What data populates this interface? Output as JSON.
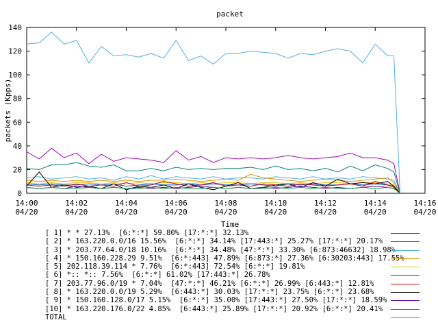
{
  "chart_data": {
    "type": "line",
    "title": "packet",
    "xlabel": "Time",
    "ylabel": "packets (Kpps)",
    "ylim": [
      0,
      140
    ],
    "yticks": [
      0,
      20,
      40,
      60,
      80,
      100,
      120,
      140
    ],
    "xlim": [
      0,
      16
    ],
    "xticks": [
      {
        "value": 0,
        "time": "14:00",
        "date": "04/20"
      },
      {
        "value": 2,
        "time": "14:02",
        "date": "04/20"
      },
      {
        "value": 4,
        "time": "14:04",
        "date": "04/20"
      },
      {
        "value": 6,
        "time": "14:06",
        "date": "04/20"
      },
      {
        "value": 8,
        "time": "14:08",
        "date": "04/20"
      },
      {
        "value": 10,
        "time": "14:10",
        "date": "04/20"
      },
      {
        "value": 12,
        "time": "14:12",
        "date": "04/20"
      },
      {
        "value": 14,
        "time": "14:14",
        "date": "04/20"
      },
      {
        "value": 16,
        "time": "14:16",
        "date": "04/20"
      }
    ],
    "x": [
      0,
      0.5,
      1,
      1.5,
      2,
      2.5,
      3,
      3.5,
      4,
      4.5,
      5,
      5.5,
      6,
      6.5,
      7,
      7.5,
      8,
      8.5,
      9,
      9.5,
      10,
      10.5,
      11,
      11.5,
      12,
      12.5,
      13,
      13.5,
      14,
      14.5,
      14.75,
      15
    ],
    "series": [
      {
        "name": "[ 1] * * 27.13%  [6:*:*] 59.80% [17:*:*] 32.13%",
        "color": "#a000c0",
        "values": [
          35,
          29,
          38,
          30,
          34,
          25,
          33,
          27,
          30,
          29,
          28,
          26,
          36,
          28,
          31,
          26,
          30,
          29,
          30,
          29,
          30,
          32,
          30,
          29,
          30,
          31,
          34,
          30,
          30,
          28,
          25,
          0
        ]
      },
      {
        "name": "[ 2] * 163.220.0.0/16 15.56%  [6:*:*] 34.14% [17:443:*] 25.27% [17:*:*] 20.17%",
        "color": "#008070",
        "values": [
          21,
          20,
          24,
          24,
          26,
          23,
          22,
          24,
          19,
          19,
          21,
          19,
          22,
          20,
          21,
          20,
          21,
          21,
          22,
          20,
          23,
          20,
          21,
          19,
          21,
          18,
          23,
          19,
          24,
          21,
          18,
          0
        ]
      },
      {
        "name": "[ 3] * 203.77.64.0/18 10.16%  [6:*:*] 34.48% [47:*:*] 33.30% [6:873:46632] 18.98%",
        "color": "#50b0e0",
        "values": [
          13,
          14,
          12,
          13,
          14,
          12,
          13,
          11,
          14,
          12,
          15,
          12,
          14,
          13,
          12,
          14,
          12,
          13,
          13,
          12,
          14,
          13,
          12,
          14,
          12,
          13,
          12,
          14,
          13,
          12,
          11,
          0
        ]
      },
      {
        "name": "[ 4] * 150.160.228.29 9.51%  [6:*:443] 47.89% [6:873:*] 27.36% [6:30203:443] 17.55%",
        "color": "#e09000",
        "values": [
          11,
          10,
          11,
          10,
          11,
          10,
          11,
          10,
          11,
          10,
          11,
          11,
          12,
          11,
          10,
          11,
          12,
          11,
          16,
          13,
          12,
          11,
          10,
          11,
          12,
          11,
          10,
          11,
          12,
          13,
          9,
          0
        ]
      },
      {
        "name": "[ 5] 202.118.39.114 * 7.76%  [6:*:443] 72.54% [6:*:*] 19.81%",
        "color": "#f0c000",
        "values": [
          9,
          8,
          9,
          8,
          9,
          9,
          8,
          9,
          8,
          9,
          8,
          9,
          9,
          8,
          9,
          8,
          9,
          9,
          8,
          9,
          9,
          8,
          9,
          8,
          9,
          9,
          8,
          9,
          9,
          8,
          7,
          0
        ]
      },
      {
        "name": "[ 6] *:: *:: 7.56%  [6:*:*] 61.02% [17:443:*] 26.78%",
        "color": "#0050c0",
        "values": [
          8,
          7,
          8,
          7,
          7,
          8,
          7,
          8,
          6,
          7,
          8,
          7,
          7,
          8,
          7,
          8,
          7,
          7,
          8,
          7,
          6,
          8,
          7,
          8,
          7,
          7,
          8,
          7,
          8,
          7,
          6,
          0
        ]
      },
      {
        "name": "[ 7] 203.77.96.0/19 * 7.04%  [47:*:*] 46.21% [6:*:*] 26.99% [6:443:*] 12.81%",
        "color": "#d00000",
        "values": [
          7,
          6,
          7,
          6,
          8,
          6,
          7,
          6,
          9,
          6,
          7,
          10,
          8,
          6,
          7,
          9,
          6,
          7,
          6,
          8,
          7,
          6,
          8,
          7,
          6,
          7,
          8,
          6,
          10,
          7,
          5,
          0
        ]
      },
      {
        "name": "[ 8] * 163.220.0.0/19 5.29%  [6:443:*] 30.03% [17:*:*] 23.75% [6:*:*] 23.68%",
        "color": "#000000",
        "values": [
          6,
          18,
          5,
          7,
          5,
          6,
          4,
          8,
          3,
          6,
          5,
          7,
          4,
          8,
          5,
          3,
          6,
          9,
          4,
          5,
          7,
          8,
          5,
          9,
          6,
          12,
          8,
          9,
          8,
          10,
          6,
          0
        ]
      },
      {
        "name": "[ 9] * 150.160.128.0/17 5.15%  [6:*:*] 35.00% [17:443:*] 27.50% [17:*:*] 18.59%",
        "color": "#6000a0",
        "values": [
          5,
          4,
          5,
          4,
          6,
          5,
          4,
          5,
          4,
          5,
          4,
          5,
          4,
          5,
          6,
          5,
          4,
          5,
          4,
          5,
          4,
          5,
          6,
          5,
          4,
          5,
          4,
          5,
          6,
          5,
          4,
          0
        ]
      },
      {
        "name": "[10] * 163.220.176.0/22 4.85%  [6:443:*] 25.89% [17:*:*] 20.92% [6:*:*] 20.41%",
        "color": "#00a040",
        "values": [
          5,
          4,
          5,
          4,
          4,
          5,
          4,
          5,
          4,
          4,
          5,
          4,
          5,
          4,
          4,
          5,
          4,
          5,
          4,
          4,
          5,
          4,
          5,
          4,
          5,
          4,
          4,
          5,
          4,
          5,
          4,
          0
        ]
      },
      {
        "name": "TOTAL",
        "color": "#50b0e0",
        "values": [
          126,
          127,
          136,
          126,
          129,
          110,
          124,
          116,
          117,
          115,
          118,
          114,
          129,
          112,
          116,
          109,
          118,
          118,
          120,
          119,
          118,
          114,
          118,
          117,
          120,
          122,
          120,
          110,
          126,
          116,
          116,
          0
        ]
      }
    ]
  }
}
